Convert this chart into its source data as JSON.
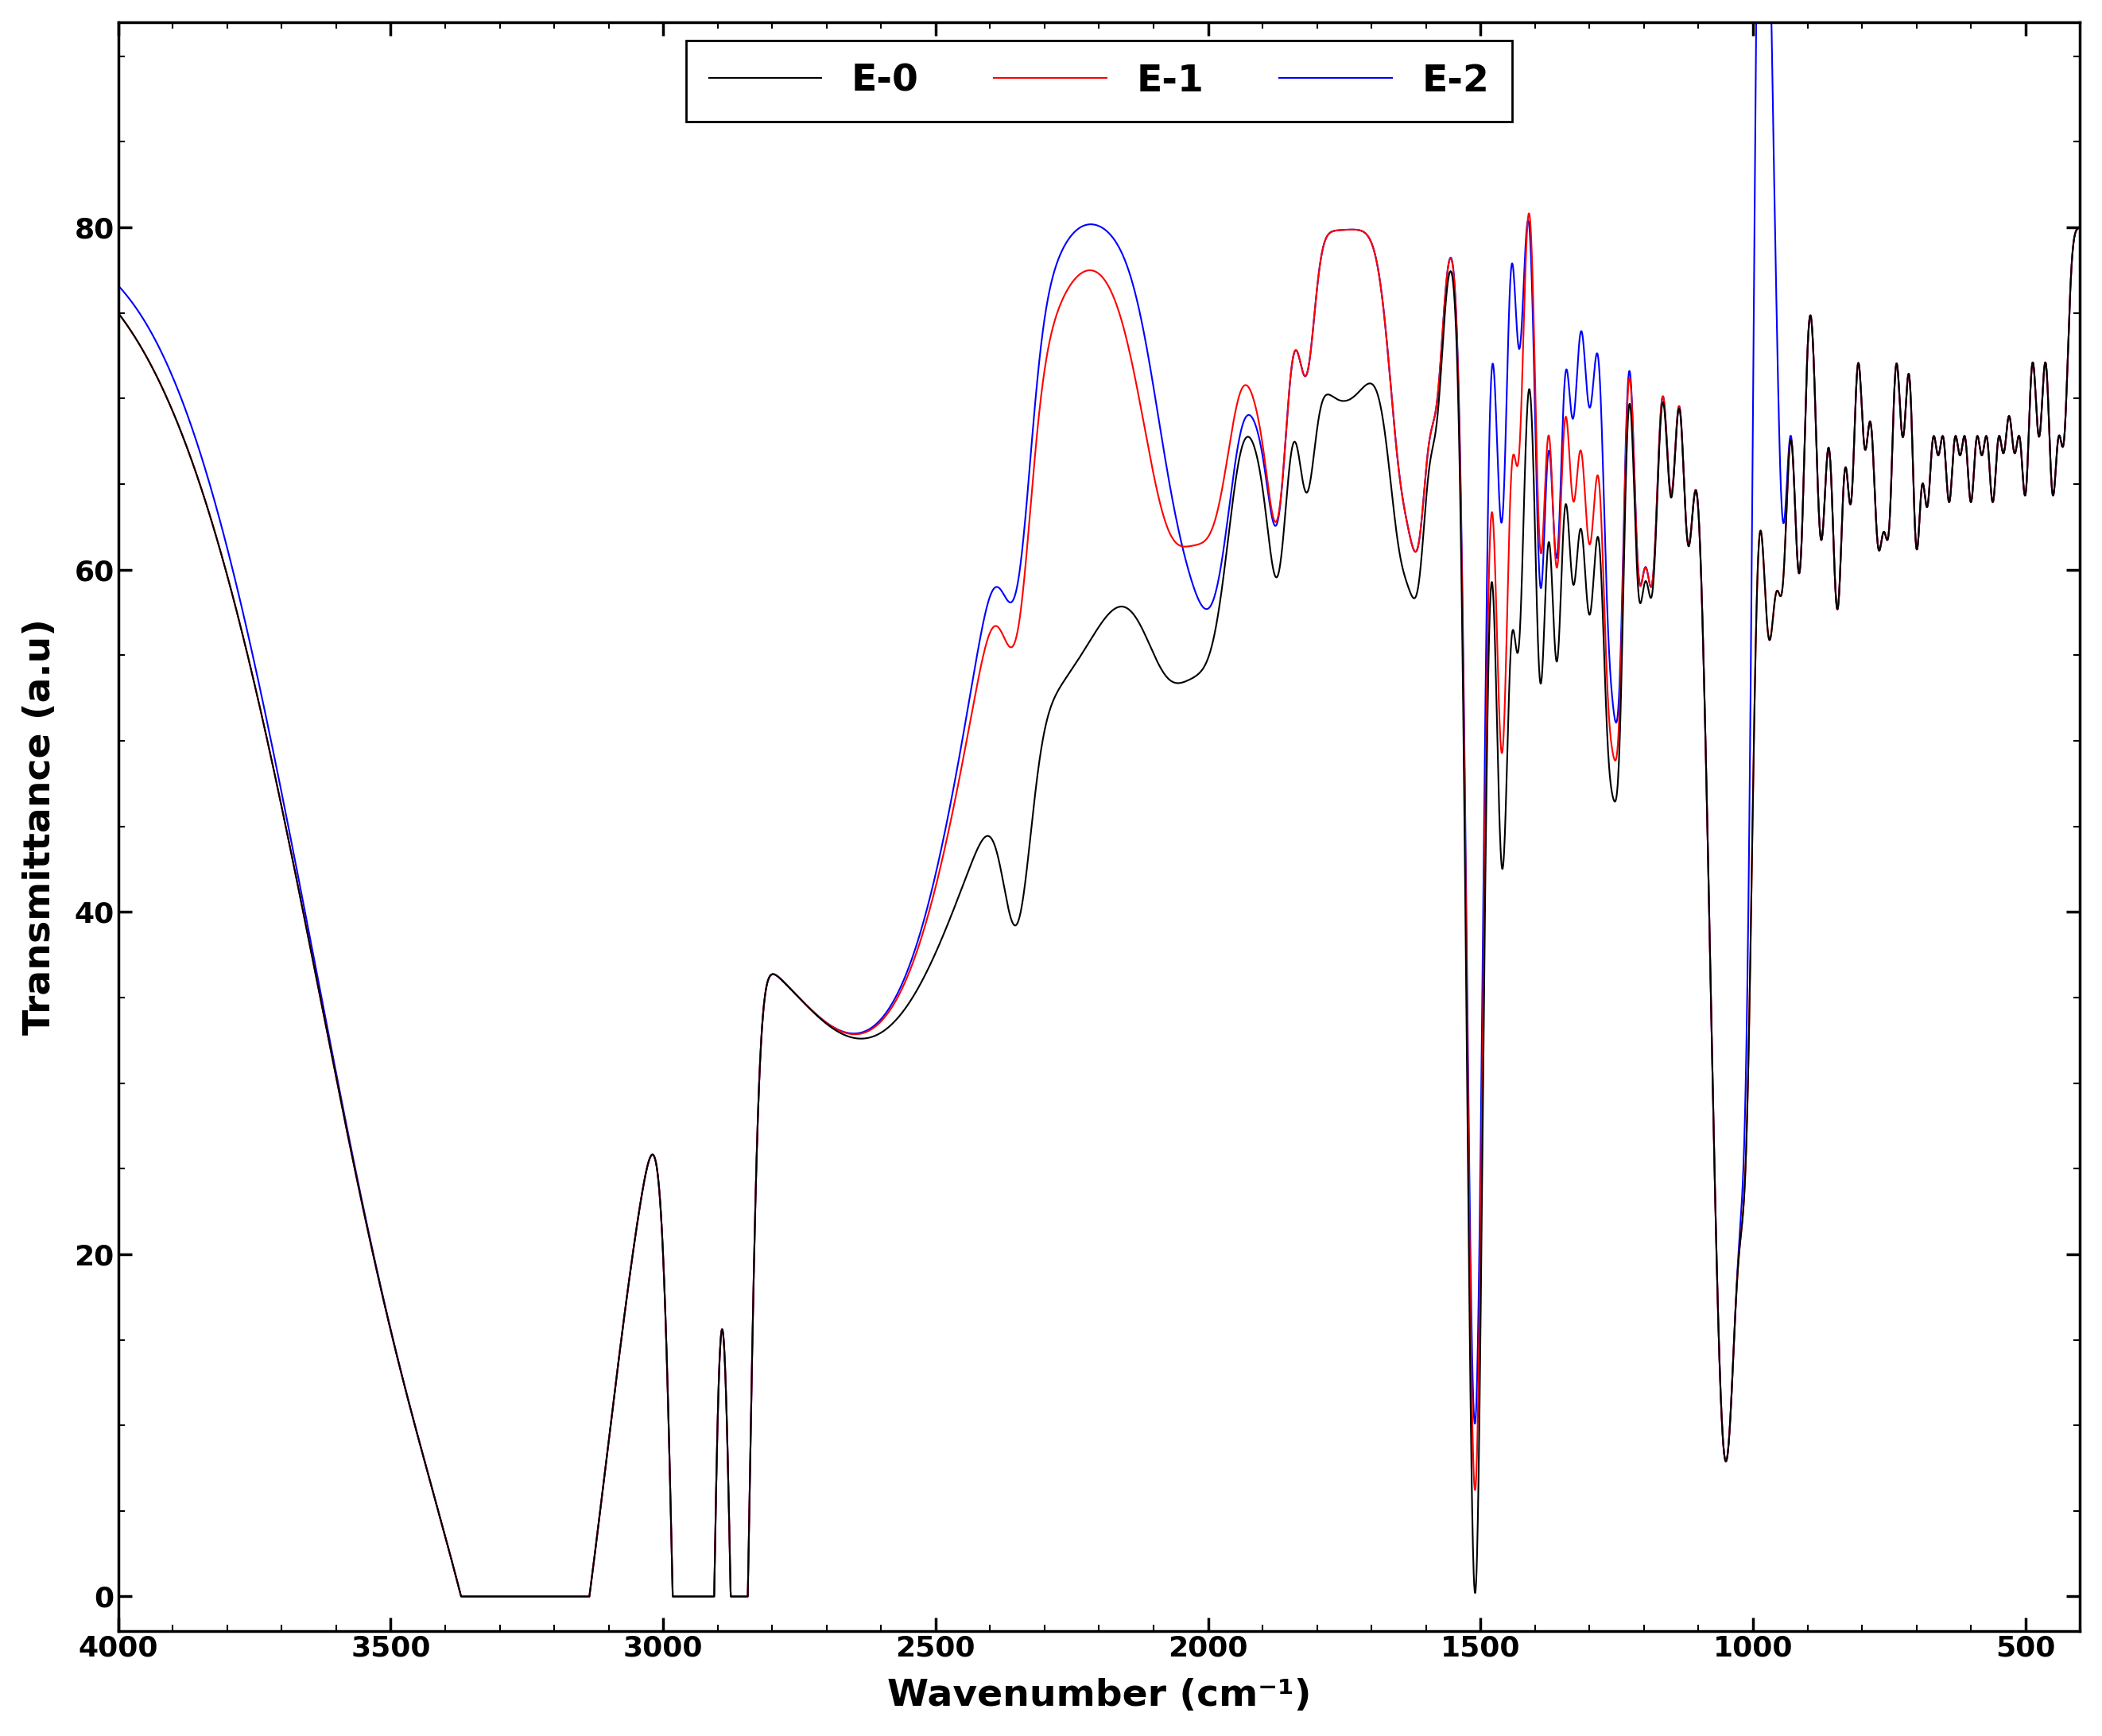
{
  "title": "",
  "xlabel": "Wavenumber (cm⁻¹)",
  "ylabel": "Transmittance (a.u)",
  "xlim": [
    4000,
    400
  ],
  "ylim": [
    -2,
    92
  ],
  "xticks": [
    4000,
    3500,
    3000,
    2500,
    2000,
    1500,
    1000,
    500
  ],
  "yticks": [
    0,
    20,
    40,
    60,
    80
  ],
  "legend_labels": [
    "E-0",
    "E-1",
    "E-2"
  ],
  "colors": [
    "black",
    "red",
    "blue"
  ],
  "linewidths": [
    1.5,
    1.5,
    1.5
  ],
  "background_color": "#ffffff",
  "tick_fontsize": 26,
  "label_fontsize": 34,
  "legend_fontsize": 34
}
